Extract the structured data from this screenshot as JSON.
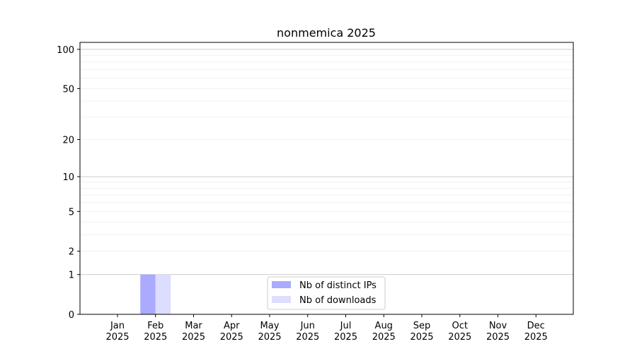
{
  "chart_data": {
    "type": "bar",
    "title": "nonmemica 2025",
    "xlabel": "",
    "ylabel": "",
    "y_scale": "log1p",
    "ylim": [
      0,
      113
    ],
    "grid": "horizontal, major and minor",
    "legend_placement": "lower-center",
    "categories": [
      "Jan\n2025",
      "Feb\n2025",
      "Mar\n2025",
      "Apr\n2025",
      "May\n2025",
      "Jun\n2025",
      "Jul\n2025",
      "Aug\n2025",
      "Sep\n2025",
      "Oct\n2025",
      "Nov\n2025",
      "Dec\n2025"
    ],
    "y_ticks": [
      0,
      1,
      2,
      5,
      10,
      20,
      50,
      100
    ],
    "series": [
      {
        "name": "Nb of distinct IPs",
        "color": "#aaaaff",
        "values": [
          0,
          1,
          0,
          0,
          0,
          0,
          0,
          0,
          0,
          0,
          0,
          0
        ]
      },
      {
        "name": "Nb of downloads",
        "color": "#ddddff",
        "values": [
          0,
          1,
          0,
          0,
          0,
          0,
          0,
          0,
          0,
          0,
          0,
          0
        ]
      }
    ]
  }
}
